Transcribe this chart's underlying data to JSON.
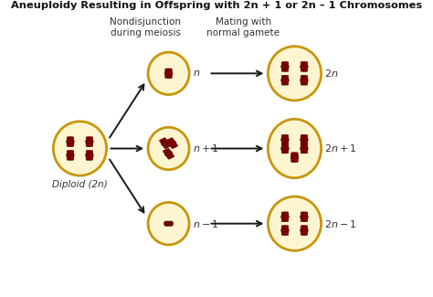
{
  "title": "Aneuploidy Resulting in Offspring with 2n + 1 or 2n – 1 Chromosomes",
  "bg_color": "#ffffff",
  "cell_fill": "#fdf5d0",
  "cell_edge": "#c8960c",
  "chrom_color": "#8b0000",
  "chrom_edge": "#3a0000",
  "arrow_color": "#1a1a1a",
  "label_color": "#333333",
  "col1_label": "Nondisjunction\nduring meiosis",
  "col2_label": "Mating with\nnormal gamete",
  "diploid_label": "Diploid (2n)"
}
